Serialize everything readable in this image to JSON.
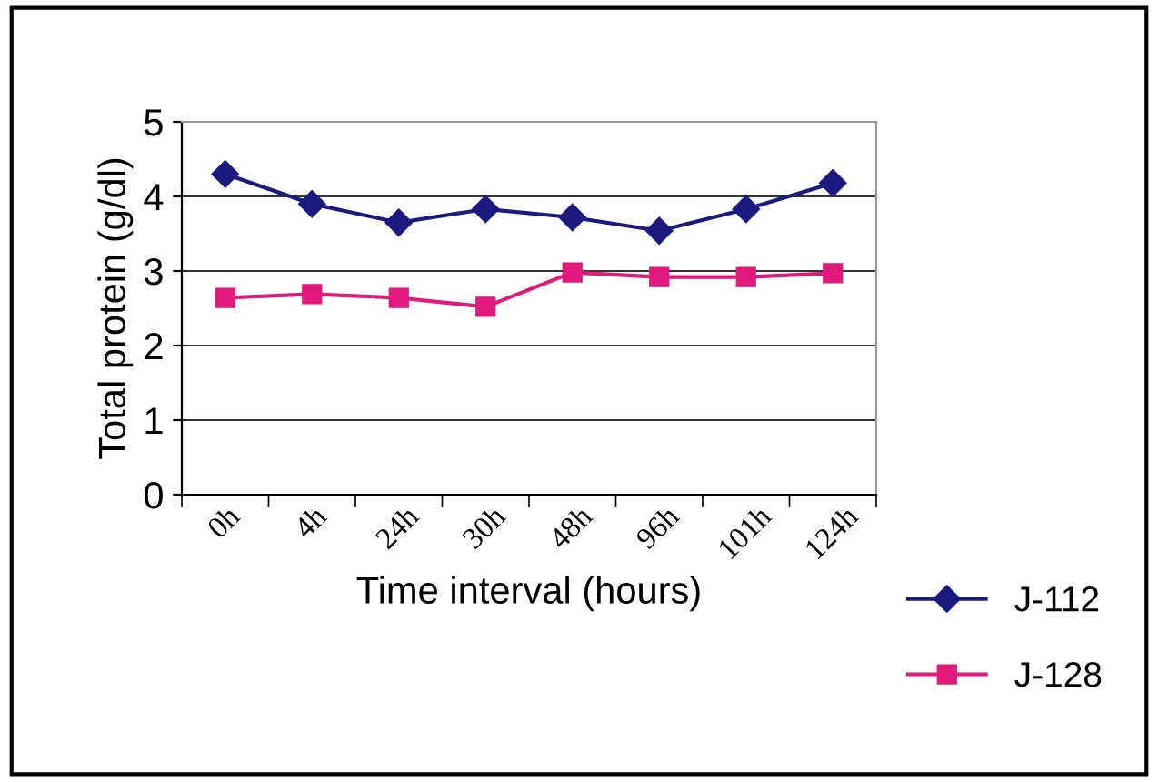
{
  "chart_data": {
    "type": "line",
    "xlabel": "Time interval (hours)",
    "ylabel": "Total protein (g/dl)",
    "categories": [
      "0h",
      "4h",
      "24h",
      "30h",
      "48h",
      "96h",
      "101h",
      "124h"
    ],
    "series": [
      {
        "name": "J-112",
        "color": "#1a1a80",
        "marker": "diamond",
        "values": [
          4.3,
          3.9,
          3.65,
          3.83,
          3.72,
          3.54,
          3.83,
          4.18
        ]
      },
      {
        "name": "J-128",
        "color": "#e0197a",
        "marker": "square",
        "values": [
          2.64,
          2.69,
          2.64,
          2.52,
          2.98,
          2.92,
          2.92,
          2.97
        ]
      }
    ],
    "ylim": [
      0,
      5
    ],
    "yticks": [
      0,
      1,
      2,
      3,
      4,
      5
    ],
    "grid": "y",
    "legend": "bottom right",
    "line_style": "solid"
  }
}
